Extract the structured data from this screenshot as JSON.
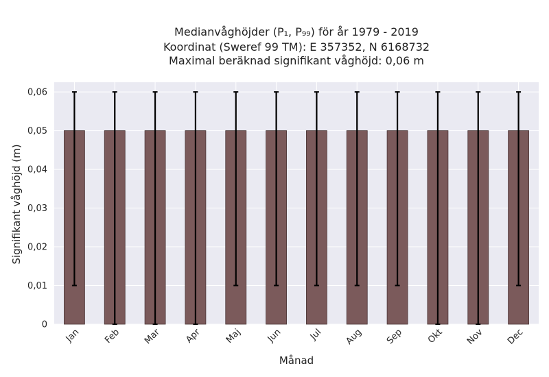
{
  "chart_data": {
    "type": "bar",
    "title_lines": [
      "Medianvåghöjder (P₁, P₉₉) för år 1979 - 2019",
      "Koordinat (Sweref 99 TM): E 357352, N 6168732",
      "Maximal beräknad signifikant våghöjd: 0,06 m"
    ],
    "xlabel": "Månad",
    "ylabel": "Signifikant våghöjd (m)",
    "categories": [
      "Jan",
      "Feb",
      "Mar",
      "Apr",
      "Maj",
      "Jun",
      "Jul",
      "Aug",
      "Sep",
      "Okt",
      "Nov",
      "Dec"
    ],
    "values": [
      0.05,
      0.05,
      0.05,
      0.05,
      0.05,
      0.05,
      0.05,
      0.05,
      0.05,
      0.05,
      0.05,
      0.05
    ],
    "error_low": [
      0.01,
      0.0,
      0.0,
      0.0,
      0.01,
      0.01,
      0.01,
      0.01,
      0.01,
      0.0,
      0.0,
      0.01
    ],
    "error_high": [
      0.06,
      0.06,
      0.06,
      0.06,
      0.06,
      0.06,
      0.06,
      0.06,
      0.06,
      0.06,
      0.06,
      0.06
    ],
    "ylim": [
      0,
      0.0625
    ],
    "yticks": [
      0,
      0.01,
      0.02,
      0.03,
      0.04,
      0.05,
      0.06
    ],
    "ytick_labels": [
      "0",
      "0,01",
      "0,02",
      "0,03",
      "0,04",
      "0,05",
      "0,06"
    ],
    "grid": true,
    "colors": {
      "bar": "#7b5a5b",
      "bar_edge": "#4a3536",
      "error_bar": "#000000",
      "plot_background": "#eaeaf2",
      "grid": "#ffffff"
    }
  }
}
